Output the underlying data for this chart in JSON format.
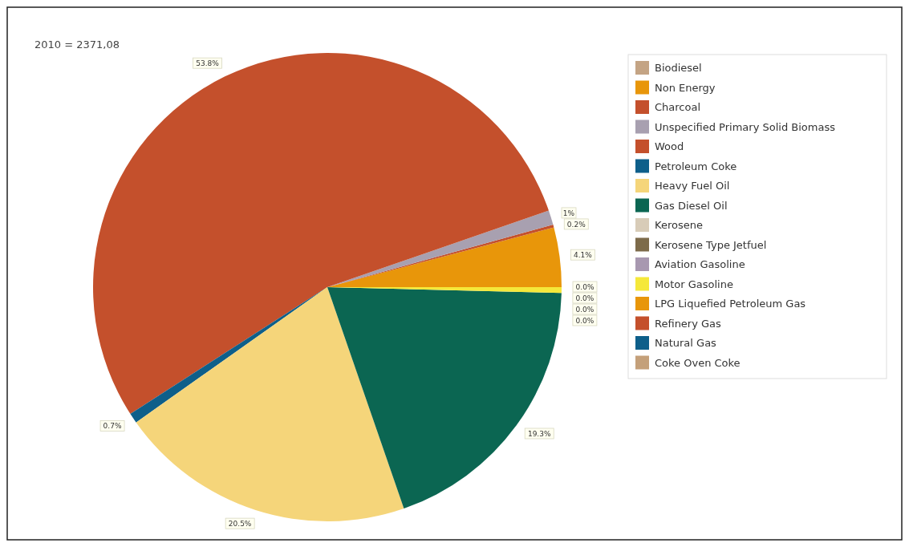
{
  "chart_data": {
    "type": "pie",
    "title": "2010 = 2371,08",
    "categories": [
      "Biodiesel",
      "Non Energy",
      "Charcoal",
      "Unspecified Primary Solid Biomass",
      "Wood",
      "Petroleum Coke",
      "Heavy Fuel Oil",
      "Gas Diesel Oil",
      "Kerosene",
      "Kerosene Type Jetfuel",
      "Aviation Gasoline",
      "Motor Gasoline",
      "LPG Liquefied Petroleum Gas",
      "Refinery Gas",
      "Natural Gas",
      "Coke Oven Coke"
    ],
    "values": [
      0,
      4.1,
      0.2,
      1,
      53.8,
      0.7,
      20.5,
      19.3,
      0,
      0,
      0,
      0.4,
      0,
      0,
      0,
      0
    ],
    "value_labels": [
      "0.0%",
      "4.1%",
      "0.2%",
      "1%",
      "53.8%",
      "0.7%",
      "20.5%",
      "19.3%",
      "0.0%",
      "0.0%",
      "0.0%",
      null,
      null,
      null,
      null,
      null
    ],
    "colors": [
      "#c4a484",
      "#e8960a",
      "#c4502c",
      "#a8a0b0",
      "#c4502c",
      "#0e5f8a",
      "#f5d57a",
      "#0b6652",
      "#d8ccb8",
      "#7d6b4a",
      "#a898b0",
      "#f5e83a",
      "#e8960a",
      "#c4502c",
      "#0e5f8a",
      "#c4a07a"
    ],
    "legend": "right"
  }
}
